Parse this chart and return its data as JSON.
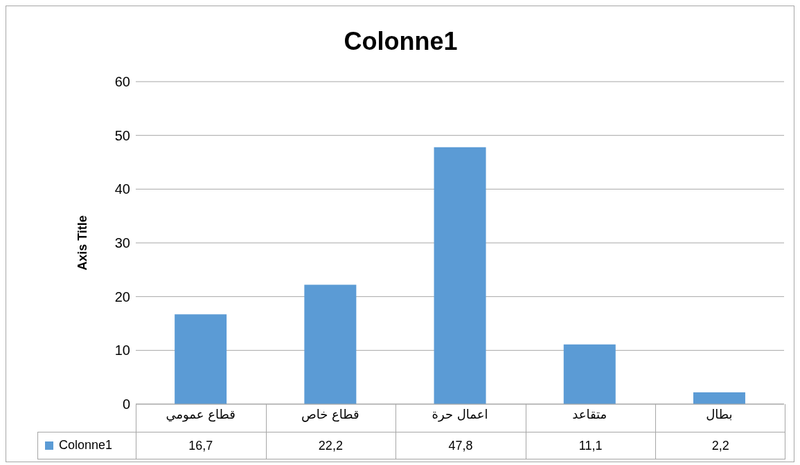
{
  "chart_data": {
    "type": "bar",
    "title": "Colonne1",
    "ylabel": "Axis Title",
    "categories": [
      "قطاع عمومي",
      "قطاع خاص",
      "اعمال حرة",
      "متقاعد",
      "بطال"
    ],
    "series": [
      {
        "name": "Colonne1",
        "color": "#5b9bd5",
        "values": [
          16.7,
          22.2,
          47.8,
          11.1,
          2.2
        ],
        "value_labels": [
          "16,7",
          "22,2",
          "47,8",
          "11,1",
          "2,2"
        ]
      }
    ],
    "ylim": [
      0,
      60
    ],
    "yticks": [
      0,
      10,
      20,
      30,
      40,
      50,
      60
    ],
    "grid": "y",
    "legend": "bottom"
  }
}
